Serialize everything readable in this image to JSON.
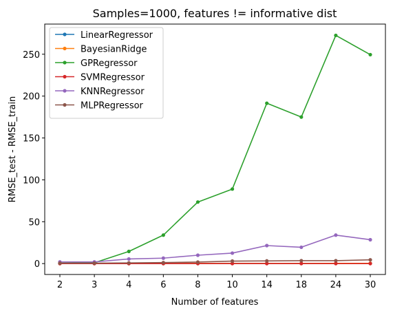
{
  "chart_data": {
    "type": "line",
    "title": "Samples=1000, features != informative dist",
    "xlabel": "Number of features",
    "ylabel": "RMSE_test - RMSE_train",
    "categories": [
      "2",
      "3",
      "4",
      "6",
      "8",
      "10",
      "14",
      "18",
      "24",
      "30"
    ],
    "ylim": [
      -13,
      286
    ],
    "yticks": [
      0,
      50,
      100,
      150,
      200,
      250
    ],
    "grid": false,
    "legend_position": "top-left",
    "series": [
      {
        "name": "LinearRegressor",
        "color": "#1f77b4",
        "values": [
          0.1,
          0.1,
          0.1,
          0.1,
          0.2,
          0.2,
          0.2,
          0.2,
          0.3,
          0.3
        ]
      },
      {
        "name": "BayesianRidge",
        "color": "#ff7f0e",
        "values": [
          0.1,
          0.1,
          0.1,
          0.1,
          0.2,
          0.2,
          0.2,
          0.2,
          0.3,
          0.3
        ]
      },
      {
        "name": "GPRegressor",
        "color": "#2ca02c",
        "values": [
          0.5,
          1.0,
          14.5,
          34.0,
          73.5,
          89.0,
          191.5,
          175.0,
          272.5,
          249.5
        ]
      },
      {
        "name": "SVMRegressor",
        "color": "#d62728",
        "values": [
          0.0,
          0.0,
          0.0,
          0.0,
          0.0,
          0.0,
          0.0,
          0.0,
          0.0,
          0.0
        ]
      },
      {
        "name": "KNNRegressor",
        "color": "#9467bd",
        "values": [
          2.0,
          2.0,
          5.5,
          6.5,
          10.0,
          12.5,
          21.5,
          19.5,
          34.0,
          28.5
        ]
      },
      {
        "name": "MLPRegressor",
        "color": "#8c564b",
        "values": [
          0.5,
          0.5,
          0.8,
          1.2,
          1.8,
          3.0,
          3.2,
          3.5,
          3.5,
          4.5
        ]
      }
    ]
  }
}
